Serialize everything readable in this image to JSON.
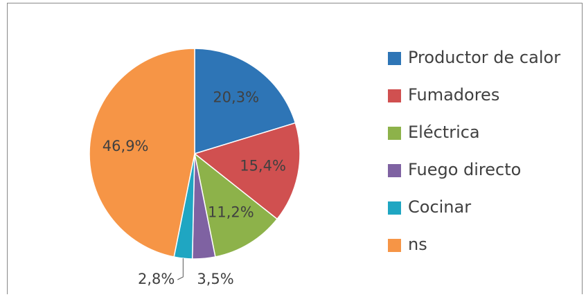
{
  "chart_data": {
    "type": "pie",
    "categories": [
      "Productor de calor",
      "Fumadores",
      "Eléctrica",
      "Fuego directo",
      "Cocinar",
      "ns"
    ],
    "values": [
      20.3,
      15.4,
      11.2,
      3.5,
      2.8,
      46.9
    ],
    "value_labels": [
      "20,3%",
      "15,4%",
      "11,2%",
      "3,5%",
      "2,8%",
      "46,9%"
    ],
    "colors": [
      "#2e75b6",
      "#d05050",
      "#8db24a",
      "#7f62a2",
      "#1fa6c2",
      "#f69546"
    ],
    "legend": "right"
  }
}
